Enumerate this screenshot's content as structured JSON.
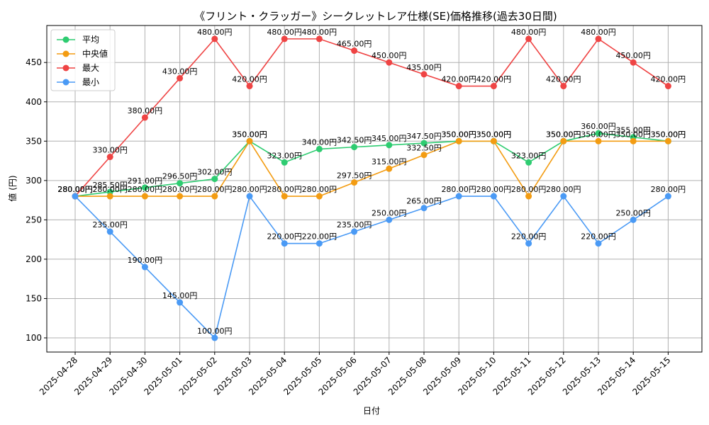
{
  "chart_data": {
    "type": "line",
    "title": "《フリント・クラッガー》シークレットレア仕様(SE)価格推移(過去30日間)",
    "xlabel": "日付",
    "ylabel": "値 (円)",
    "ylim": [
      82,
      497
    ],
    "yticks": [
      100,
      150,
      200,
      250,
      300,
      350,
      400,
      450
    ],
    "grid": true,
    "legend_position": "top-left",
    "label_suffix": "円",
    "categories": [
      "2025-04-28",
      "2025-04-29",
      "2025-04-30",
      "2025-05-01",
      "2025-05-02",
      "2025-05-03",
      "2025-05-04",
      "2025-05-05",
      "2025-05-06",
      "2025-05-07",
      "2025-05-08",
      "2025-05-09",
      "2025-05-10",
      "2025-05-11",
      "2025-05-12",
      "2025-05-13",
      "2025-05-14",
      "2025-05-15"
    ],
    "series": [
      {
        "name": "平均",
        "color": "#2ecc71",
        "values": [
          280,
          285.5,
          291,
          296.5,
          302,
          350,
          323,
          340,
          342.5,
          345,
          347.5,
          350,
          350,
          323,
          350,
          360,
          355,
          350
        ]
      },
      {
        "name": "中央値",
        "color": "#f39c12",
        "values": [
          280,
          280,
          280,
          280,
          280,
          350,
          280,
          280,
          297.5,
          315,
          332.5,
          350,
          350,
          280,
          350,
          350,
          350,
          350
        ]
      },
      {
        "name": "最大",
        "color": "#ef4444",
        "values": [
          280,
          330,
          380,
          430,
          480,
          420,
          480,
          480,
          465,
          450,
          435,
          420,
          420,
          480,
          420,
          480,
          450,
          420
        ]
      },
      {
        "name": "最小",
        "color": "#4a9af5",
        "values": [
          280,
          235,
          190,
          145,
          100,
          280,
          220,
          220,
          235,
          250,
          265,
          280,
          280,
          220,
          280,
          220,
          250,
          280
        ]
      }
    ]
  }
}
